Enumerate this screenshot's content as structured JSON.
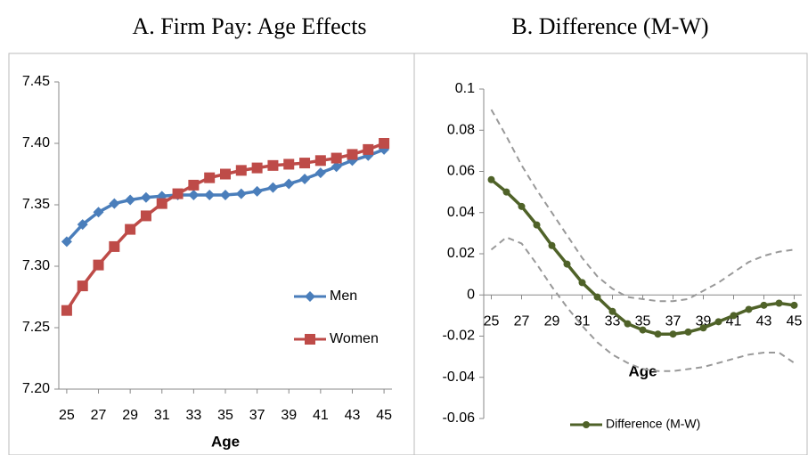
{
  "chart_data": [
    {
      "type": "line",
      "title": "A.  Firm Pay: Age Effects",
      "xlabel": "Age",
      "x": [
        25,
        26,
        27,
        28,
        29,
        30,
        31,
        32,
        33,
        34,
        35,
        36,
        37,
        38,
        39,
        40,
        41,
        42,
        43,
        44,
        45
      ],
      "xlim": [
        24.5,
        45.5
      ],
      "xticks": [
        25,
        27,
        29,
        31,
        33,
        35,
        37,
        39,
        41,
        43,
        45
      ],
      "ylim": [
        7.2,
        7.45
      ],
      "yticks": [
        {
          "value": 7.2,
          "label": "7.20"
        },
        7.25,
        {
          "value": 7.3,
          "label": "7.30"
        },
        7.35,
        {
          "value": 7.4,
          "label": "7.40"
        },
        7.45
      ],
      "legend": "lower right",
      "series": [
        {
          "name": "Men",
          "color": "#4a7ebb",
          "marker": "diamond",
          "values": [
            7.32,
            7.334,
            7.344,
            7.351,
            7.354,
            7.356,
            7.357,
            7.358,
            7.358,
            7.358,
            7.358,
            7.359,
            7.361,
            7.364,
            7.367,
            7.371,
            7.376,
            7.381,
            7.386,
            7.39,
            7.395
          ]
        },
        {
          "name": "Women",
          "color": "#be4b48",
          "marker": "square",
          "values": [
            7.264,
            7.284,
            7.301,
            7.316,
            7.33,
            7.341,
            7.351,
            7.359,
            7.366,
            7.372,
            7.375,
            7.378,
            7.38,
            7.382,
            7.383,
            7.384,
            7.386,
            7.388,
            7.391,
            7.395,
            7.4
          ]
        }
      ]
    },
    {
      "type": "line",
      "title": "B. Difference (M-W)",
      "xlabel": "Age",
      "x": [
        25,
        26,
        27,
        28,
        29,
        30,
        31,
        32,
        33,
        34,
        35,
        36,
        37,
        38,
        39,
        40,
        41,
        42,
        43,
        44,
        45
      ],
      "xlim": [
        24.5,
        45.5
      ],
      "xticks": [
        25,
        27,
        29,
        31,
        33,
        35,
        37,
        39,
        41,
        43,
        45
      ],
      "ylim": [
        -0.06,
        0.1
      ],
      "yticks": [
        -0.06,
        -0.04,
        -0.02,
        0,
        0.02,
        0.04,
        0.06,
        0.08,
        0.1
      ],
      "legend": "bottom",
      "series": [
        {
          "name": "Difference (M-W)",
          "color": "#4f6228",
          "marker": "circle",
          "values": [
            0.056,
            0.05,
            0.043,
            0.034,
            0.024,
            0.015,
            0.006,
            -0.001,
            -0.008,
            -0.014,
            -0.017,
            -0.019,
            -0.019,
            -0.018,
            -0.016,
            -0.013,
            -0.01,
            -0.007,
            -0.005,
            -0.004,
            -0.005
          ]
        },
        {
          "color": "#999999",
          "style": "dashed",
          "values": [
            0.09,
            0.077,
            0.063,
            0.051,
            0.04,
            0.029,
            0.018,
            0.009,
            0.003,
            -0.001,
            -0.002,
            -0.003,
            -0.003,
            -0.002,
            0.002,
            0.006,
            0.011,
            0.016,
            0.019,
            0.021,
            0.022
          ]
        },
        {
          "color": "#999999",
          "style": "dashed",
          "values": [
            0.022,
            0.028,
            0.025,
            0.015,
            0.004,
            -0.006,
            -0.015,
            -0.023,
            -0.029,
            -0.033,
            -0.036,
            -0.037,
            -0.037,
            -0.036,
            -0.035,
            -0.033,
            -0.031,
            -0.029,
            -0.028,
            -0.028,
            -0.033
          ]
        }
      ]
    }
  ]
}
